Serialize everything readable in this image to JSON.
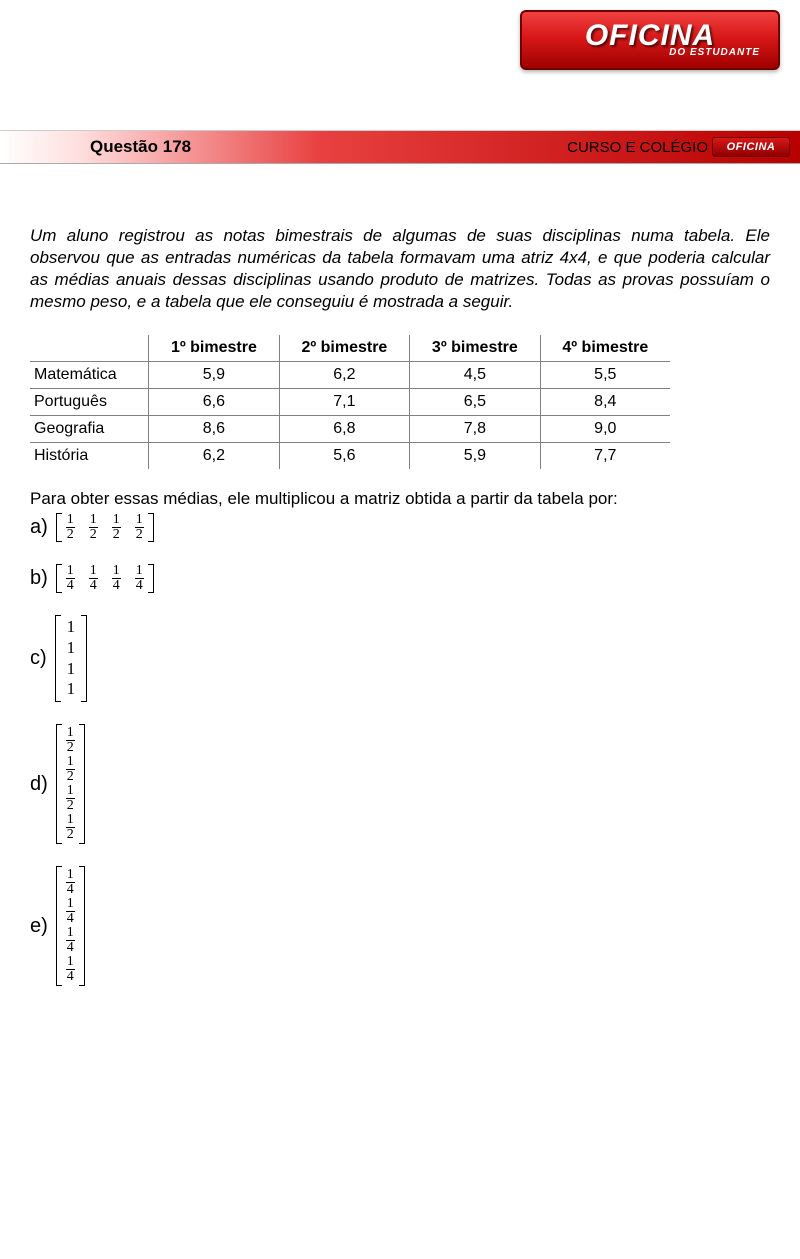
{
  "logo": {
    "main": "OFICINA",
    "sub": "DO ESTUDANTE"
  },
  "banner": {
    "question_label": "Questão 178",
    "course_label": "CURSO E COLÉGIO"
  },
  "prompt": "Um aluno registrou as notas bimestrais de algumas de suas disciplinas numa tabela. Ele observou que as entradas numéricas da tabela formavam uma atriz 4x4, e que poderia calcular as médias anuais dessas disciplinas usando produto de matrizes. Todas as provas possuíam o mesmo peso, e a tabela que ele conseguiu é mostrada a seguir.",
  "table": {
    "headers": [
      "",
      "1º bimestre",
      "2º bimestre",
      "3º bimestre",
      "4º bimestre"
    ],
    "rows": [
      [
        "Matemática",
        "5,9",
        "6,2",
        "4,5",
        "5,5"
      ],
      [
        "Português",
        "6,6",
        "7,1",
        "6,5",
        "8,4"
      ],
      [
        "Geografia",
        "8,6",
        "6,8",
        "7,8",
        "9,0"
      ],
      [
        "História",
        "6,2",
        "5,6",
        "5,9",
        "7,7"
      ]
    ]
  },
  "post_table": "Para obter essas médias, ele multiplicou a matriz obtida a partir da tabela por:",
  "options": {
    "a": {
      "letter": "a)",
      "type": "row_frac",
      "num": "1",
      "den": "2",
      "count": 4
    },
    "b": {
      "letter": "b)",
      "type": "row_frac",
      "num": "1",
      "den": "4",
      "count": 4
    },
    "c": {
      "letter": "c)",
      "type": "col_int",
      "val": "1",
      "count": 4
    },
    "d": {
      "letter": "d)",
      "type": "col_frac",
      "num": "1",
      "den": "2",
      "count": 4
    },
    "e": {
      "letter": "e)",
      "type": "col_frac",
      "num": "1",
      "den": "4",
      "count": 4
    }
  },
  "colors": {
    "banner_gradient_start": "#ffffff",
    "banner_gradient_end": "#b80000",
    "logo_bg_top": "#f04040",
    "logo_bg_bottom": "#a00000",
    "table_border": "#808080"
  }
}
